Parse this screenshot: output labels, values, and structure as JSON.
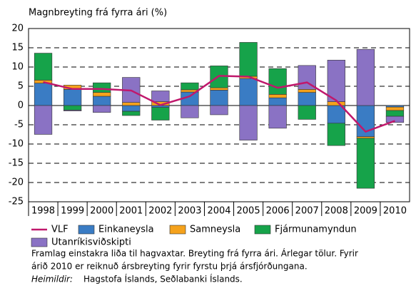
{
  "chart_data": {
    "type": "bar",
    "stacked": true,
    "y_label": "Magnbreyting frá fyrra ári (%)",
    "categories": [
      "1998",
      "1999",
      "2000",
      "2001",
      "2002",
      "2003",
      "2004",
      "2005",
      "2006",
      "2007",
      "2008",
      "2009",
      "2010"
    ],
    "series": [
      {
        "name": "Einkaneysla",
        "color": "#3a7cc4",
        "values": [
          5.8,
          4.2,
          2.4,
          -1.5,
          -0.5,
          3.5,
          4.0,
          7.0,
          2.0,
          3.4,
          -4.6,
          -8.1,
          -0.4
        ]
      },
      {
        "name": "Samneysla",
        "color": "#f5a21c",
        "values": [
          0.8,
          1.1,
          1.0,
          0.8,
          1.0,
          0.6,
          0.6,
          0.6,
          0.9,
          0.8,
          1.0,
          -0.4,
          -0.9
        ]
      },
      {
        "name": "Fjármunamyndun",
        "color": "#16a34a",
        "values": [
          7.0,
          -1.2,
          2.5,
          -1.1,
          -3.3,
          1.8,
          5.7,
          8.8,
          6.7,
          -3.6,
          -5.8,
          -13.0,
          -1.5
        ]
      },
      {
        "name": "Utanríkisviðskipti",
        "color": "#8a72c4",
        "values": [
          -7.5,
          -0.2,
          -1.8,
          6.5,
          2.8,
          -3.2,
          -2.4,
          -9.0,
          -5.9,
          6.2,
          10.8,
          14.6,
          -1.6
        ]
      }
    ],
    "line": {
      "name": "VLF",
      "color": "#c0186c",
      "values": [
        6.1,
        4.3,
        4.3,
        3.9,
        0.1,
        2.4,
        7.7,
        7.5,
        4.6,
        6.0,
        1.3,
        -6.8,
        -4.0
      ]
    },
    "ylim": [
      -25,
      20
    ],
    "yticks": [
      -25,
      -20,
      -15,
      -10,
      -5,
      0,
      5,
      10,
      15,
      20
    ],
    "grid": true,
    "notes": [
      "Framlag einstakra liða til hagvaxtar. Breyting frá fyrra ári. Árlegar tölur. Fyrir",
      "árið 2010 er reiknuð ársbreyting fyrir fyrstu þrjá ársfjórðungana."
    ],
    "source_label": "Heimildir:",
    "source": "Hagstofa Íslands, Seðlabanki Íslands."
  }
}
